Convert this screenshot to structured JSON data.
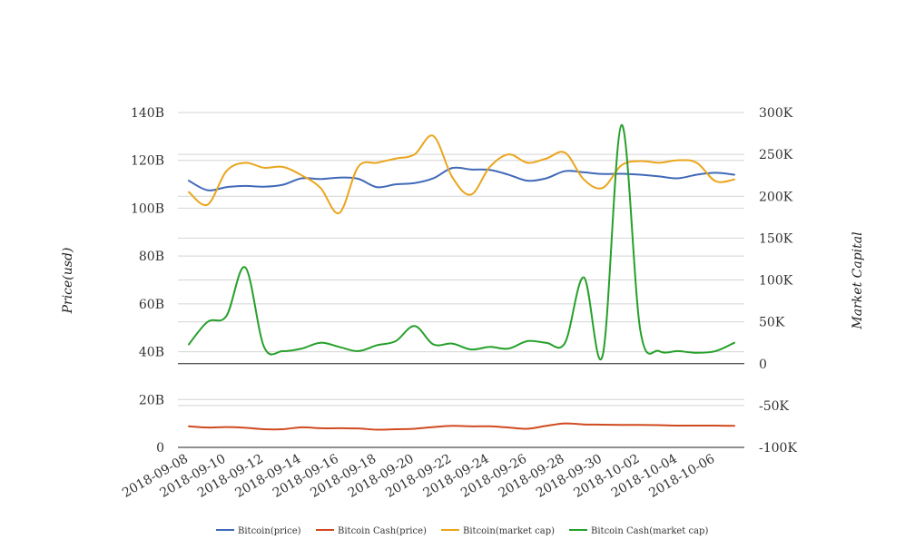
{
  "chart_data": {
    "type": "line",
    "title": "",
    "xlabel": "",
    "ylabel_left": "Price(usd)",
    "ylabel_right": "Market Capital",
    "grid": true,
    "legend_position": "bottom",
    "x": [
      "2018-09-08",
      "2018-09-09",
      "2018-09-10",
      "2018-09-11",
      "2018-09-12",
      "2018-09-13",
      "2018-09-14",
      "2018-09-15",
      "2018-09-16",
      "2018-09-17",
      "2018-09-18",
      "2018-09-19",
      "2018-09-20",
      "2018-09-21",
      "2018-09-22",
      "2018-09-23",
      "2018-09-24",
      "2018-09-25",
      "2018-09-26",
      "2018-09-27",
      "2018-09-28",
      "2018-09-29",
      "2018-09-30",
      "2018-10-01",
      "2018-10-02",
      "2018-10-03",
      "2018-10-04",
      "2018-10-05",
      "2018-10-06",
      "2018-10-07"
    ],
    "x_tick_labels": [
      "2018-09-08",
      "2018-09-10",
      "2018-09-12",
      "2018-09-14",
      "2018-09-16",
      "2018-09-18",
      "2018-09-20",
      "2018-09-22",
      "2018-09-24",
      "2018-09-26",
      "2018-09-28",
      "2018-09-30",
      "2018-10-02",
      "2018-10-04",
      "2018-10-06"
    ],
    "y_left": {
      "ylim": [
        0,
        140
      ],
      "ticks": [
        0,
        20,
        40,
        60,
        80,
        100,
        120,
        140
      ],
      "tick_labels": [
        "0",
        "20B",
        "40B",
        "60B",
        "80B",
        "100B",
        "120B",
        "140B"
      ]
    },
    "y_right": {
      "ylim": [
        -100,
        300
      ],
      "ticks": [
        -100,
        -50,
        0,
        50,
        100,
        150,
        200,
        250,
        300
      ],
      "tick_labels": [
        "-100K",
        "-50K",
        "0",
        "50K",
        "100K",
        "150K",
        "200K",
        "250K",
        "300K"
      ]
    },
    "series": [
      {
        "name": "Bitcoin(price)",
        "axis": "left",
        "color": "#4169b8",
        "values": [
          111.5,
          107.5,
          108.8,
          109.3,
          109.0,
          109.8,
          112.5,
          112.2,
          112.8,
          112.3,
          108.8,
          110.0,
          110.5,
          112.5,
          116.8,
          116.2,
          116.0,
          114.0,
          111.5,
          112.5,
          115.5,
          115.0,
          114.3,
          114.4,
          114.0,
          113.3,
          112.5,
          114.0,
          114.8,
          114.0
        ]
      },
      {
        "name": "Bitcoin Cash(price)",
        "axis": "left",
        "color": "#d04a1f",
        "values": [
          8.8,
          8.3,
          8.5,
          8.2,
          7.6,
          7.6,
          8.4,
          8.0,
          8.0,
          7.9,
          7.4,
          7.6,
          7.8,
          8.5,
          9.0,
          8.8,
          8.8,
          8.3,
          7.8,
          9.0,
          10.0,
          9.6,
          9.5,
          9.4,
          9.4,
          9.3,
          9.1,
          9.1,
          9.1,
          9.0
        ]
      },
      {
        "name": "Bitcoin(market cap)",
        "axis": "right",
        "color": "#eaa51c",
        "values": [
          205,
          190,
          230,
          240,
          234,
          235,
          225,
          210,
          180,
          235,
          240,
          245,
          250,
          272,
          223,
          202,
          235,
          250,
          240,
          245,
          252,
          220,
          210,
          237,
          242,
          240,
          243,
          240,
          218,
          220
        ]
      },
      {
        "name": "Bitcoin Cash(market cap)",
        "axis": "right",
        "color": "#26a02a",
        "values": [
          23,
          50,
          57,
          115,
          20,
          15,
          18,
          25,
          20,
          15,
          22,
          27,
          45,
          23,
          24,
          17,
          20,
          18,
          27,
          25,
          25,
          103,
          10,
          285,
          40,
          15,
          15,
          13,
          15,
          25
        ]
      }
    ]
  }
}
